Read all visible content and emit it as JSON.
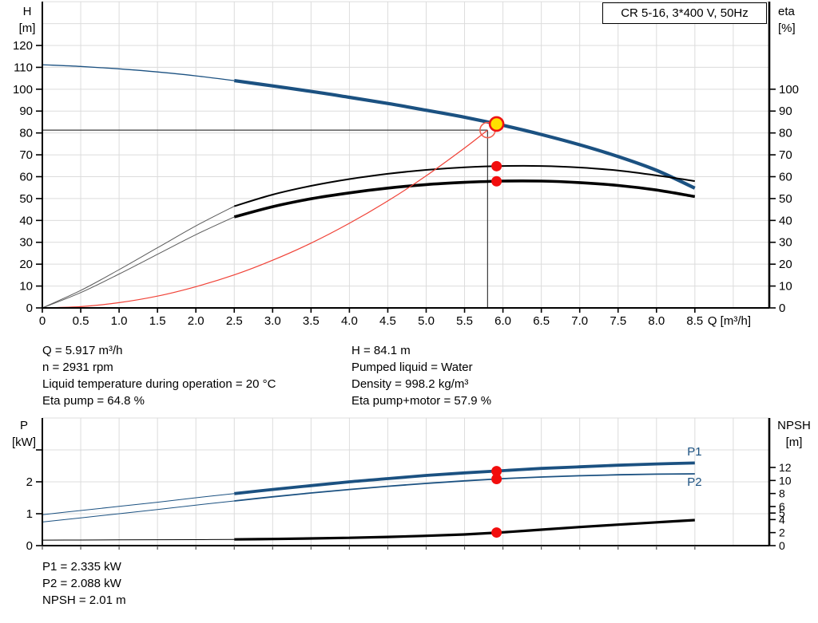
{
  "colors": {
    "curve_blue": "#1b5181",
    "curve_black": "#000000",
    "lead_gray": "#5a5a5a",
    "system_red": "#f04237",
    "marker_red": "#f20d0d",
    "marker_yellow": "#ffe000",
    "grid": "#dcdcdc",
    "axis": "#000000",
    "crosshair": "#3c3c3c"
  },
  "info": {
    "left": [
      "Q = 5.917 m³/h",
      "n = 2931 rpm",
      "Liquid temperature during operation = 20 °C",
      "Eta pump = 64.8 %"
    ],
    "right": [
      "H = 84.1 m",
      "Pumped liquid = Water",
      "Density = 998.2 kg/m³",
      "Eta pump+motor = 57.9 %"
    ],
    "bottom": [
      "P1 = 2.335 kW",
      "P2 = 2.088 kW",
      "NPSH = 2.01 m"
    ]
  },
  "chart_data": [
    {
      "type": "line",
      "title": "CR 5-16, 3*400 V, 50Hz",
      "xlabel": "Q [m³/h]",
      "ylabel_left": [
        "H",
        "[m]"
      ],
      "ylabel_right": [
        "eta",
        "[%]"
      ],
      "xlim": [
        0,
        9.4
      ],
      "ylim_left": [
        0,
        140
      ],
      "ylim_right": [
        0,
        100
      ],
      "grid": true,
      "x_ticks": [
        0,
        0.5,
        1,
        1.5,
        2,
        2.5,
        3,
        3.5,
        4,
        4.5,
        5,
        5.5,
        6,
        6.5,
        7,
        7.5,
        8,
        8.5
      ],
      "x_tick_labels": [
        "0",
        "0.5",
        "1.0",
        "1.5",
        "2.0",
        "2.5",
        "3.0",
        "3.5",
        "4.0",
        "4.5",
        "5.0",
        "5.5",
        "6.0",
        "6.5",
        "7.0",
        "7.5",
        "8.0",
        "8.5"
      ],
      "y_ticks_left": [
        0,
        10,
        20,
        30,
        40,
        50,
        60,
        70,
        80,
        90,
        100,
        110,
        120
      ],
      "y_ticks_right": [
        0,
        10,
        20,
        30,
        40,
        50,
        60,
        70,
        80,
        90,
        100
      ],
      "series": [
        {
          "name": "head-curve-lead",
          "axis": "left",
          "color": "#1b5181",
          "width": 1.3,
          "x": [
            0,
            0.5,
            1,
            1.5,
            2,
            2.5
          ],
          "y": [
            111.2,
            110.4,
            109.3,
            107.9,
            106.1,
            103.9
          ]
        },
        {
          "name": "head-curve",
          "axis": "left",
          "color": "#1b5181",
          "width": 4.2,
          "x": [
            2.5,
            3,
            3.5,
            4,
            4.5,
            5,
            5.5,
            6,
            6.5,
            7,
            7.5,
            8,
            8.5
          ],
          "y": [
            103.9,
            101.5,
            99.0,
            96.3,
            93.5,
            90.4,
            87.2,
            83.5,
            79.3,
            74.6,
            69.2,
            62.9,
            54.8
          ]
        },
        {
          "name": "eta-pump-curve-lead",
          "axis": "right",
          "color": "#5a5a5a",
          "width": 1,
          "x": [
            0,
            0.5,
            1,
            1.5,
            2,
            2.5
          ],
          "y": [
            0,
            8,
            17.5,
            27.5,
            37.5,
            46.5
          ]
        },
        {
          "name": "eta-pump-curve",
          "axis": "right",
          "color": "#000000",
          "width": 2,
          "x": [
            2.5,
            3,
            3.5,
            4,
            4.5,
            5,
            5.5,
            6,
            6.5,
            7,
            7.5,
            8,
            8.5
          ],
          "y": [
            46.5,
            51.8,
            55.8,
            58.9,
            61.3,
            63.1,
            64.3,
            64.9,
            64.9,
            64.2,
            62.8,
            60.6,
            58.0
          ]
        },
        {
          "name": "eta-pump-motor-curve-lead",
          "axis": "right",
          "color": "#5a5a5a",
          "width": 1,
          "x": [
            0,
            0.5,
            1,
            1.5,
            2,
            2.5
          ],
          "y": [
            0,
            7,
            15.5,
            24.5,
            33.5,
            41.6
          ]
        },
        {
          "name": "eta-pump-motor-curve",
          "axis": "right",
          "color": "#000000",
          "width": 3.6,
          "x": [
            2.5,
            3,
            3.5,
            4,
            4.5,
            5,
            5.5,
            6,
            6.5,
            7,
            7.5,
            8,
            8.5
          ],
          "y": [
            41.6,
            46.3,
            49.9,
            52.6,
            54.8,
            56.4,
            57.4,
            58.0,
            58.0,
            57.3,
            56.0,
            53.9,
            50.9
          ]
        },
        {
          "name": "system-curve",
          "axis": "left",
          "color": "#f04237",
          "width": 1.2,
          "x": [
            0,
            0.5,
            1,
            1.5,
            2,
            2.5,
            3,
            3.5,
            4,
            4.5,
            5,
            5.5,
            5.8
          ],
          "y": [
            0,
            0.6,
            2.4,
            5.4,
            9.7,
            15.1,
            21.8,
            29.6,
            38.7,
            48.9,
            60.4,
            73.1,
            81.3
          ]
        }
      ],
      "markers": {
        "duty_point": {
          "q": 5.917,
          "h": 84.1
        },
        "requested_point": {
          "q": 5.8,
          "h": 81.3
        },
        "eta_duty_points": [
          {
            "q": 5.917,
            "v": 64.8
          },
          {
            "q": 5.917,
            "v": 57.9
          }
        ]
      }
    },
    {
      "type": "line",
      "xlabel": "",
      "ylabel_left": [
        "P",
        "[kW]"
      ],
      "ylabel_right": [
        "NPSH",
        "[m]"
      ],
      "xlim": [
        0,
        9.4
      ],
      "ylim_left": [
        0,
        4
      ],
      "ylim_right": [
        0,
        19.5
      ],
      "grid": true,
      "y_ticks_left": [
        0,
        1,
        2,
        3
      ],
      "y_tick_labels_left": [
        "0",
        "1",
        "2",
        ""
      ],
      "y_ticks_right": [
        0,
        2,
        4,
        5,
        6,
        8,
        10,
        12
      ],
      "y_tick_labels_right": [
        "0",
        "2",
        "4",
        "5",
        "6",
        "8",
        "10",
        "12"
      ],
      "series": [
        {
          "name": "p1-curve-lead",
          "axis": "left",
          "color": "#1b5181",
          "width": 1,
          "x": [
            0,
            0.5,
            1,
            1.5,
            2,
            2.5
          ],
          "y": [
            0.97,
            1.1,
            1.23,
            1.36,
            1.5,
            1.63
          ]
        },
        {
          "name": "p1-curve",
          "axis": "left",
          "color": "#1b5181",
          "width": 3.8,
          "x": [
            2.5,
            3,
            3.5,
            4,
            4.5,
            5,
            5.5,
            6,
            6.5,
            7,
            7.5,
            8,
            8.5
          ],
          "y": [
            1.63,
            1.76,
            1.88,
            2.0,
            2.1,
            2.2,
            2.28,
            2.35,
            2.42,
            2.47,
            2.52,
            2.56,
            2.59
          ]
        },
        {
          "name": "p2-curve-lead",
          "axis": "left",
          "color": "#1b5181",
          "width": 1,
          "x": [
            0,
            0.5,
            1,
            1.5,
            2,
            2.5
          ],
          "y": [
            0.74,
            0.87,
            1.0,
            1.13,
            1.27,
            1.4
          ]
        },
        {
          "name": "p2-curve",
          "axis": "left",
          "color": "#1b5181",
          "width": 1.8,
          "x": [
            2.5,
            3,
            3.5,
            4,
            4.5,
            5,
            5.5,
            6,
            6.5,
            7,
            7.5,
            8,
            8.5
          ],
          "y": [
            1.4,
            1.53,
            1.65,
            1.76,
            1.86,
            1.95,
            2.03,
            2.1,
            2.15,
            2.19,
            2.22,
            2.24,
            2.25
          ]
        },
        {
          "name": "npsh-curve-lead",
          "axis": "right",
          "color": "#000000",
          "width": 1,
          "x": [
            0,
            0.5,
            1,
            1.5,
            2,
            2.5
          ],
          "y": [
            0.85,
            0.86,
            0.88,
            0.9,
            0.92,
            0.95
          ]
        },
        {
          "name": "npsh-curve",
          "axis": "right",
          "color": "#000000",
          "width": 3.2,
          "x": [
            2.5,
            3,
            3.5,
            4,
            4.5,
            5,
            5.5,
            6,
            6.5,
            7,
            7.5,
            8,
            8.5
          ],
          "y": [
            0.95,
            1.02,
            1.1,
            1.2,
            1.33,
            1.5,
            1.72,
            2.05,
            2.45,
            2.85,
            3.22,
            3.58,
            3.92
          ]
        }
      ],
      "series_labels": [
        {
          "text": "P1",
          "q": 8.4,
          "p": 2.82
        },
        {
          "text": "P2",
          "q": 8.4,
          "p": 1.88
        }
      ],
      "markers": {
        "duty_points": [
          {
            "q": 5.917,
            "axis": "left",
            "v": 2.335
          },
          {
            "q": 5.917,
            "axis": "left",
            "v": 2.088
          },
          {
            "q": 5.917,
            "axis": "right",
            "v": 2.01
          }
        ]
      }
    }
  ]
}
